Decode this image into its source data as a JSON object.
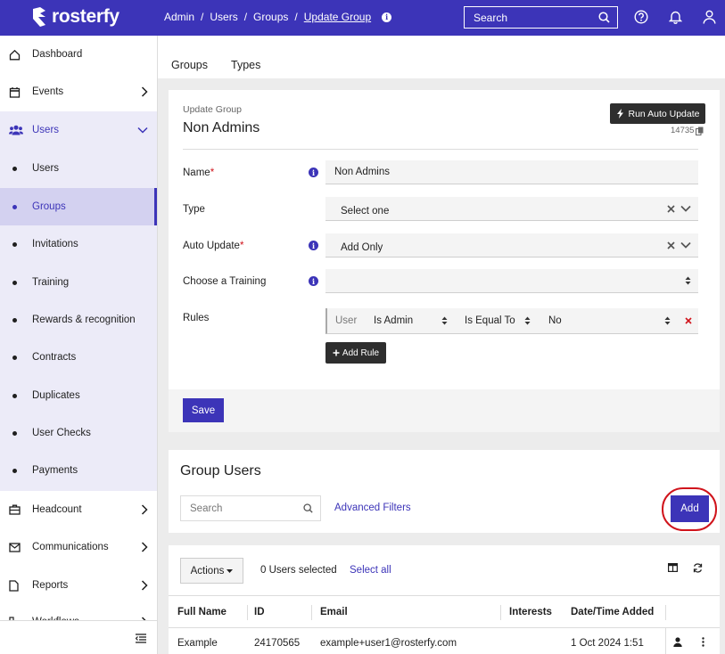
{
  "brand": {
    "name": "rosterfy",
    "color": "#3c34b8"
  },
  "breadcrumb": {
    "items": [
      "Admin",
      "Users",
      "Groups",
      "Update Group"
    ]
  },
  "top_search": {
    "placeholder": "Search"
  },
  "top_icons": [
    "help-icon",
    "bell-icon",
    "user-icon"
  ],
  "sidebar": {
    "dashboard": "Dashboard",
    "events": "Events",
    "users": "Users",
    "sub_users": "Users",
    "groups": "Groups",
    "invitations": "Invitations",
    "training": "Training",
    "rewards": "Rewards & recognition",
    "contracts": "Contracts",
    "duplicates": "Duplicates",
    "user_checks": "User Checks",
    "payments": "Payments",
    "headcount": "Headcount",
    "communications": "Communications",
    "reports": "Reports",
    "workflows": "Workflows"
  },
  "tabs": {
    "groups": "Groups",
    "types": "Types"
  },
  "form": {
    "subtitle": "Update Group",
    "title": "Non Admins",
    "run_button": "Run Auto Update",
    "group_id": "14735",
    "name_label": "Name",
    "name_value": "Non Admins",
    "type_label": "Type",
    "type_value": "Select one",
    "auto_label": "Auto Update",
    "auto_value": "Add Only",
    "training_label": "Choose a Training",
    "training_value": "",
    "rules_label": "Rules",
    "rule": {
      "entity": "User",
      "field": "Is Admin",
      "operator": "Is Equal To",
      "value": "No"
    },
    "add_rule": "Add Rule",
    "save": "Save",
    "required_mark": "*"
  },
  "group_users": {
    "title": "Group Users",
    "search_placeholder": "Search",
    "advanced_filters": "Advanced Filters",
    "add": "Add"
  },
  "table": {
    "actions": "Actions",
    "selected": "0 Users selected",
    "select_all": "Select all",
    "columns": {
      "full_name": "Full Name",
      "id": "ID",
      "email": "Email",
      "interests": "Interests",
      "date_added": "Date/Time Added"
    },
    "rows": [
      {
        "full_name": "Example",
        "id": "24170565",
        "email": "example+user1@rosterfy.com",
        "interests": "",
        "date_added": "1 Oct 2024 1:51"
      }
    ]
  }
}
